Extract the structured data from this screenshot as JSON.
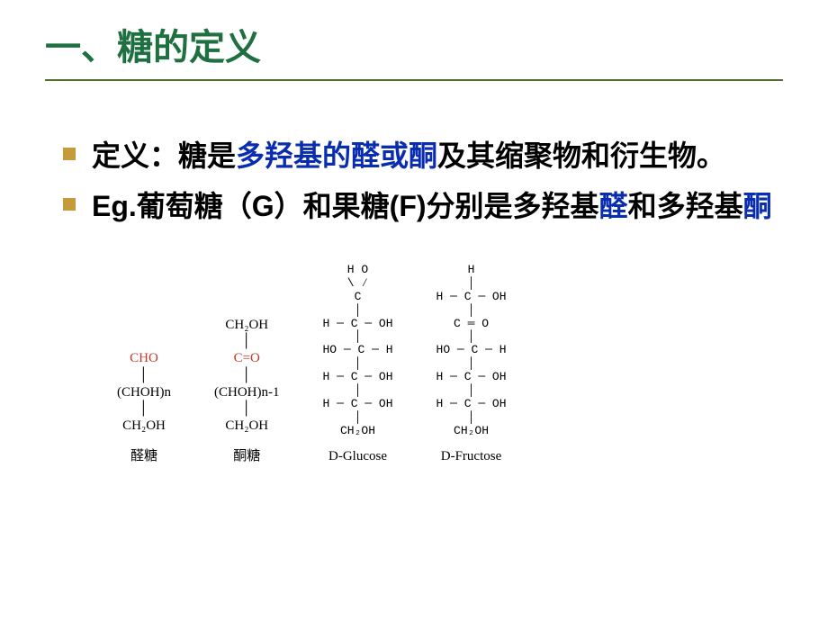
{
  "colors": {
    "title_color": "#1e7040",
    "title_underline": "#556b2f",
    "bullet_color": "#c49a3a",
    "body_text": "#000000",
    "highlight_blue": "#0a2db0",
    "highlight_red": "#c0392b",
    "background": "#ffffff"
  },
  "typography": {
    "title_fontsize": 40,
    "body_fontsize": 32,
    "formula_fontsize": 15,
    "label_fontsize": 15
  },
  "title": "一、糖的定义",
  "bullets": [
    {
      "segments": [
        {
          "text": "定义：糖是",
          "style": "normal"
        },
        {
          "text": "多羟基的醛或酮",
          "style": "blue"
        },
        {
          "text": "及其缩聚物和衍生物。",
          "style": "normal"
        }
      ]
    },
    {
      "segments": [
        {
          "text": "Eg.葡萄糖（G）和果糖(F)分别是多羟基",
          "style": "normal"
        },
        {
          "text": "醛",
          "style": "blue"
        },
        {
          "text": "和多羟基",
          "style": "normal"
        },
        {
          "text": "酮",
          "style": "blue"
        }
      ]
    }
  ],
  "formulas": {
    "aldose": {
      "lines": [
        {
          "text": "CHO",
          "style": "red"
        },
        {
          "text": "│",
          "style": "vbar"
        },
        {
          "text": "(CHOH)n",
          "style": "normal"
        },
        {
          "text": "│",
          "style": "vbar"
        },
        {
          "text": "CH₂OH",
          "style": "normal"
        }
      ],
      "label": "醛糖"
    },
    "ketose": {
      "lines": [
        {
          "text": "CH₂OH",
          "style": "normal"
        },
        {
          "text": "│",
          "style": "vbar"
        },
        {
          "text": "C=O",
          "style": "red"
        },
        {
          "text": "│",
          "style": "vbar"
        },
        {
          "text": "(CHOH)n-1",
          "style": "normal"
        },
        {
          "text": "│",
          "style": "vbar"
        },
        {
          "text": "CH₂OH",
          "style": "normal"
        }
      ],
      "label": "酮糖"
    },
    "glucose": {
      "lines": [
        "   H   O   ",
        "    \\ ∕    ",
        "     C     ",
        "     │     ",
        " H ─ C ─ OH",
        "     │     ",
        "HO ─ C ─ H ",
        "     │     ",
        " H ─ C ─ OH",
        "     │     ",
        " H ─ C ─ OH",
        "     │     ",
        "   CH₂OH   "
      ],
      "label": "D-Glucose"
    },
    "fructose": {
      "lines": [
        "     H     ",
        "     │     ",
        " H ─ C ─ OH",
        "     │     ",
        "     C ═ O ",
        "     │     ",
        "HO ─ C ─ H ",
        "     │     ",
        " H ─ C ─ OH",
        "     │     ",
        " H ─ C ─ OH",
        "     │     ",
        "   CH₂OH   "
      ],
      "label": "D-Fructose"
    }
  }
}
